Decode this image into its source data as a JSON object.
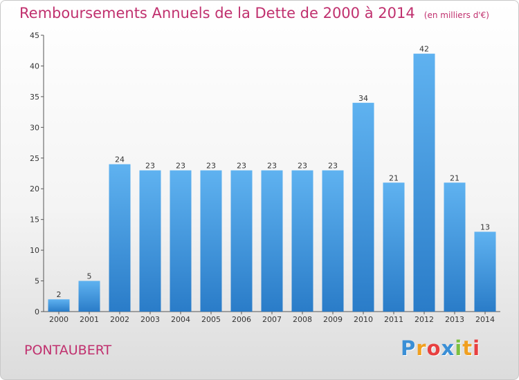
{
  "title": "Remboursements Annuels de la Dette de 2000 à 2014",
  "subtitle": "(en milliers d'€)",
  "commune": "PONTAUBERT",
  "logo": {
    "letters": [
      "P",
      "r",
      "o",
      "x",
      "i",
      "t",
      "i"
    ],
    "colors": [
      "#3a8fd6",
      "#f0a020",
      "#e84040",
      "#3a8fd6",
      "#7cc040",
      "#f0a020",
      "#e84040"
    ]
  },
  "colors": {
    "bar_top": "#5fb2f0",
    "bar_bottom": "#2a7cc8",
    "accent": "#c0306e"
  },
  "chart_data": {
    "type": "bar",
    "title": "Remboursements Annuels de la Dette de 2000 à 2014",
    "xlabel": "",
    "ylabel": "",
    "categories": [
      "2000",
      "2001",
      "2002",
      "2003",
      "2004",
      "2005",
      "2006",
      "2007",
      "2008",
      "2009",
      "2010",
      "2011",
      "2012",
      "2013",
      "2014"
    ],
    "values": [
      2,
      5,
      24,
      23,
      23,
      23,
      23,
      23,
      23,
      23,
      34,
      21,
      42,
      21,
      13
    ],
    "ylim": [
      0,
      45
    ],
    "yticks": [
      0,
      5,
      10,
      15,
      20,
      25,
      30,
      35,
      40,
      45
    ],
    "grid": false,
    "legend": "none"
  }
}
